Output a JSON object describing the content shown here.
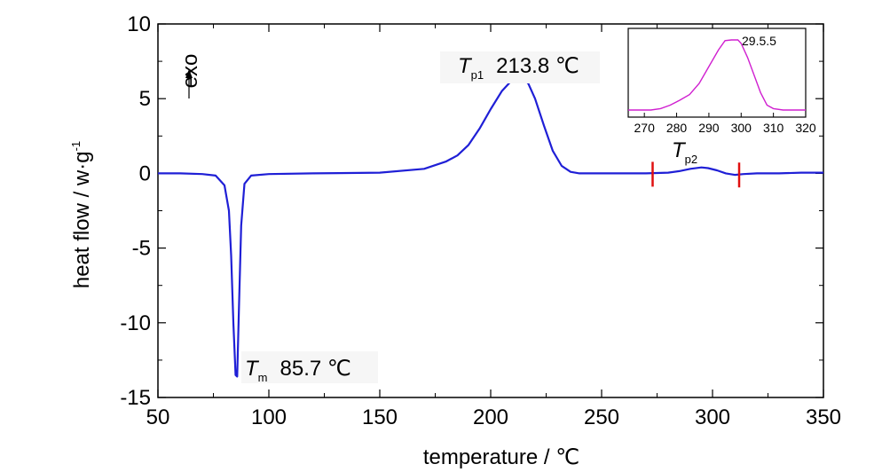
{
  "chart_data": [
    {
      "type": "line",
      "xlabel": "temperature / ℃",
      "ylabel": "heat flow / w·g",
      "ylabel_superscript": "-1",
      "xlim": [
        50,
        350
      ],
      "ylim": [
        -15,
        10
      ],
      "xticks": [
        50,
        100,
        150,
        200,
        250,
        300,
        350
      ],
      "yticks": [
        -15,
        -10,
        -5,
        0,
        5,
        10
      ],
      "grid": false,
      "colors": {
        "series": "#1f1fd6",
        "markers": "#e01010",
        "text": "#000000"
      },
      "direction_label": "exo",
      "series": [
        {
          "x": [
            50,
            60,
            70,
            76,
            80,
            82,
            83,
            84,
            85,
            85.7,
            86.5,
            87.5,
            89,
            92,
            100,
            120,
            150,
            170,
            180,
            185,
            190,
            195,
            200,
            205,
            210,
            213.8,
            217,
            220,
            224,
            228,
            232,
            236,
            240,
            250,
            260,
            270,
            280,
            285,
            290,
            295,
            298,
            302,
            306,
            310,
            314,
            320,
            330,
            340,
            350
          ],
          "y": [
            0.0,
            0.0,
            -0.05,
            -0.15,
            -0.8,
            -2.5,
            -5.5,
            -10.0,
            -13.5,
            -13.6,
            -9.0,
            -3.5,
            -0.7,
            -0.15,
            -0.05,
            0.0,
            0.05,
            0.3,
            0.8,
            1.2,
            1.9,
            3.0,
            4.3,
            5.5,
            6.3,
            6.5,
            6.0,
            5.0,
            3.2,
            1.5,
            0.5,
            0.1,
            0.0,
            0.0,
            0.0,
            0.0,
            0.05,
            0.15,
            0.3,
            0.4,
            0.35,
            0.2,
            0.0,
            -0.1,
            -0.05,
            0.0,
            0.0,
            0.05,
            0.05
          ]
        }
      ],
      "annotations": [
        {
          "symbol": "T",
          "subscript": "m",
          "value": "85.7 ℃",
          "x": 85.7,
          "y": -13.6
        },
        {
          "symbol": "T",
          "subscript": "p1",
          "value": "213.8 ℃",
          "x": 213.8,
          "y": 6.5
        },
        {
          "symbol": "T",
          "subscript": "p2",
          "value": "",
          "x": 295,
          "y": 0.4
        }
      ],
      "range_markers": [
        {
          "x": 273,
          "y": 0.0
        },
        {
          "x": 312,
          "y": -0.05
        }
      ]
    },
    {
      "type": "line",
      "inset": true,
      "xlim": [
        265,
        320
      ],
      "ylim": [
        0,
        1
      ],
      "xticks": [
        270,
        280,
        290,
        300,
        310,
        320
      ],
      "grid": false,
      "colors": {
        "series": "#d020d0"
      },
      "peak_label": "29.5.5",
      "series": [
        {
          "x": [
            265,
            270,
            272,
            275,
            278,
            281,
            284,
            287,
            290,
            293,
            295,
            297,
            299,
            300,
            302,
            304,
            306,
            308,
            310,
            313,
            316,
            320
          ],
          "y": [
            0.0,
            0.0,
            0.0,
            0.02,
            0.07,
            0.14,
            0.22,
            0.38,
            0.62,
            0.86,
            0.99,
            1.0,
            1.0,
            0.95,
            0.75,
            0.5,
            0.25,
            0.07,
            0.02,
            0.0,
            0.0,
            0.0
          ]
        }
      ]
    }
  ]
}
